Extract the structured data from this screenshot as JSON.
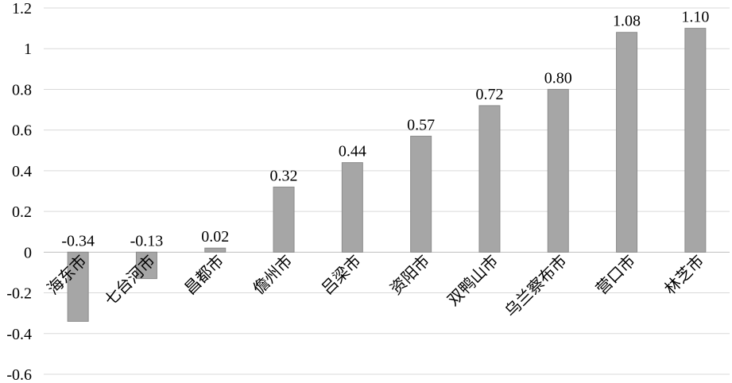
{
  "chart_data": {
    "type": "bar",
    "categories": [
      "海东市",
      "七台河市",
      "昌都市",
      "儋州市",
      "吕梁市",
      "资阳市",
      "双鸭山市",
      "乌兰察布市",
      "营口市",
      "林芝市"
    ],
    "values": [
      -0.34,
      -0.13,
      0.02,
      0.32,
      0.44,
      0.57,
      0.72,
      0.8,
      1.08,
      1.1
    ],
    "data_labels": [
      "-0.34",
      "-0.13",
      "0.02",
      "0.32",
      "0.44",
      "0.57",
      "0.72",
      "0.80",
      "1.08",
      "1.10"
    ],
    "y_ticks": [
      1.2,
      1.0,
      0.8,
      0.6,
      0.4,
      0.2,
      0.0,
      -0.2,
      -0.4,
      -0.6
    ],
    "y_tick_labels": [
      "1.2",
      "1",
      "0.8",
      "0.6",
      "0.4",
      "0.2",
      "0",
      "-0.2",
      "-0.4",
      "-0.6"
    ],
    "ylim": [
      -0.6,
      1.2
    ],
    "grid": true,
    "bar_color": "#a6a6a6",
    "bar_edge_color": "#8c8c8c",
    "title": "",
    "xlabel": "",
    "ylabel": ""
  }
}
